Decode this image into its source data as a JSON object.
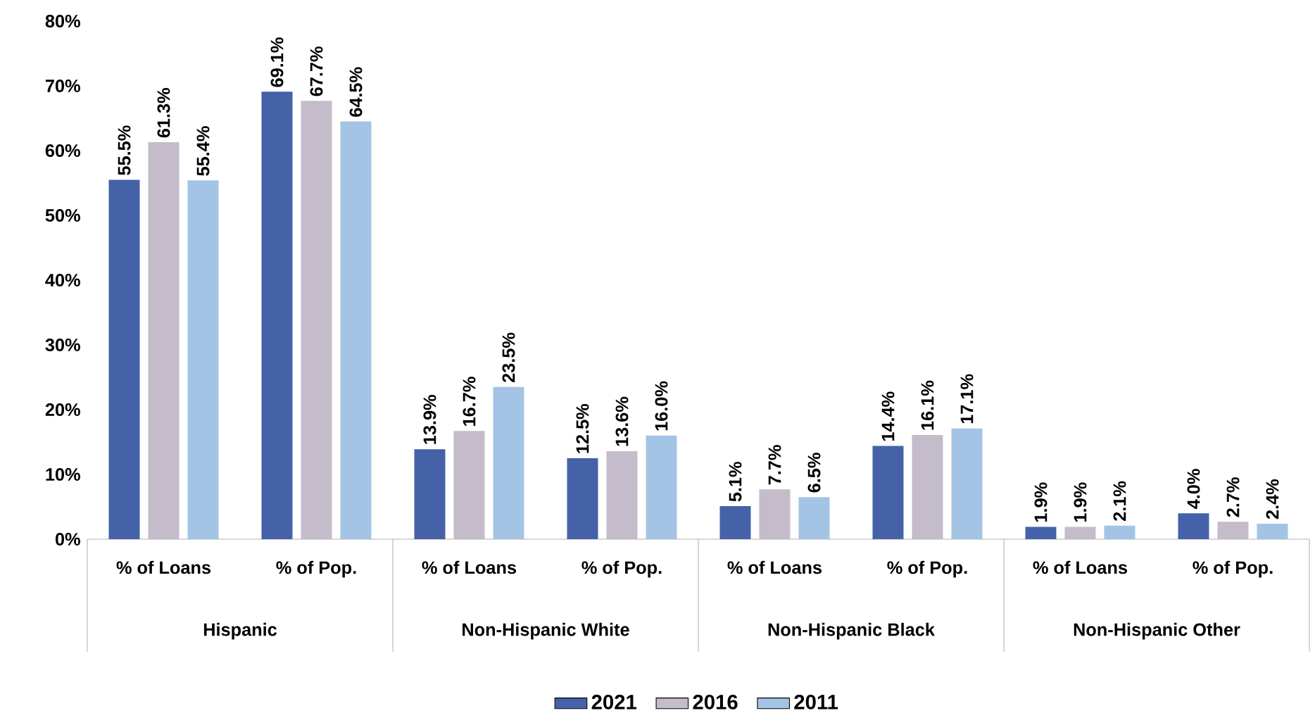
{
  "chart_data": {
    "type": "bar",
    "categories": [
      "% of Loans",
      "% of Pop.",
      "% of Loans",
      "% of Pop.",
      "% of Loans",
      "% of Pop.",
      "% of Loans",
      "% of Pop."
    ],
    "series": [
      {
        "name": "2021",
        "color": "#4562a9",
        "values": [
          55.5,
          69.1,
          13.9,
          12.5,
          5.1,
          14.4,
          1.9,
          4.0
        ],
        "value_labels": [
          "55.5%",
          "69.1%",
          "13.9%",
          "12.5%",
          "5.1%",
          "14.4%",
          "1.9%",
          "4.0%"
        ]
      },
      {
        "name": "2016",
        "color": "#c4bcca",
        "values": [
          61.3,
          67.7,
          16.7,
          13.6,
          7.7,
          16.1,
          1.9,
          2.7
        ],
        "value_labels": [
          "61.3%",
          "67.7%",
          "16.7%",
          "13.6%",
          "7.7%",
          "16.1%",
          "1.9%",
          "2.7%"
        ]
      },
      {
        "name": "2011",
        "color": "#a3c4e4",
        "values": [
          55.4,
          64.5,
          23.5,
          16.0,
          6.5,
          17.1,
          2.1,
          2.4
        ],
        "value_labels": [
          "55.4%",
          "64.5%",
          "23.5%",
          "16.0%",
          "6.5%",
          "17.1%",
          "2.1%",
          "2.4%"
        ]
      }
    ],
    "annotations": [
      "Hispanic",
      "Non-Hispanic White",
      "Non-Hispanic Black",
      "Non-Hispanic Other"
    ],
    "ylim": [
      0,
      80
    ],
    "yticks": [
      {
        "value": 0,
        "label": "0%"
      },
      {
        "value": 10,
        "label": "10%"
      },
      {
        "value": 20,
        "label": "20%"
      },
      {
        "value": 30,
        "label": "30%"
      },
      {
        "value": 40,
        "label": "40%"
      },
      {
        "value": 50,
        "label": "50%"
      },
      {
        "value": 60,
        "label": "60%"
      },
      {
        "value": 70,
        "label": "70%"
      },
      {
        "value": 80,
        "label": "80%"
      }
    ],
    "legend": "bottom"
  }
}
